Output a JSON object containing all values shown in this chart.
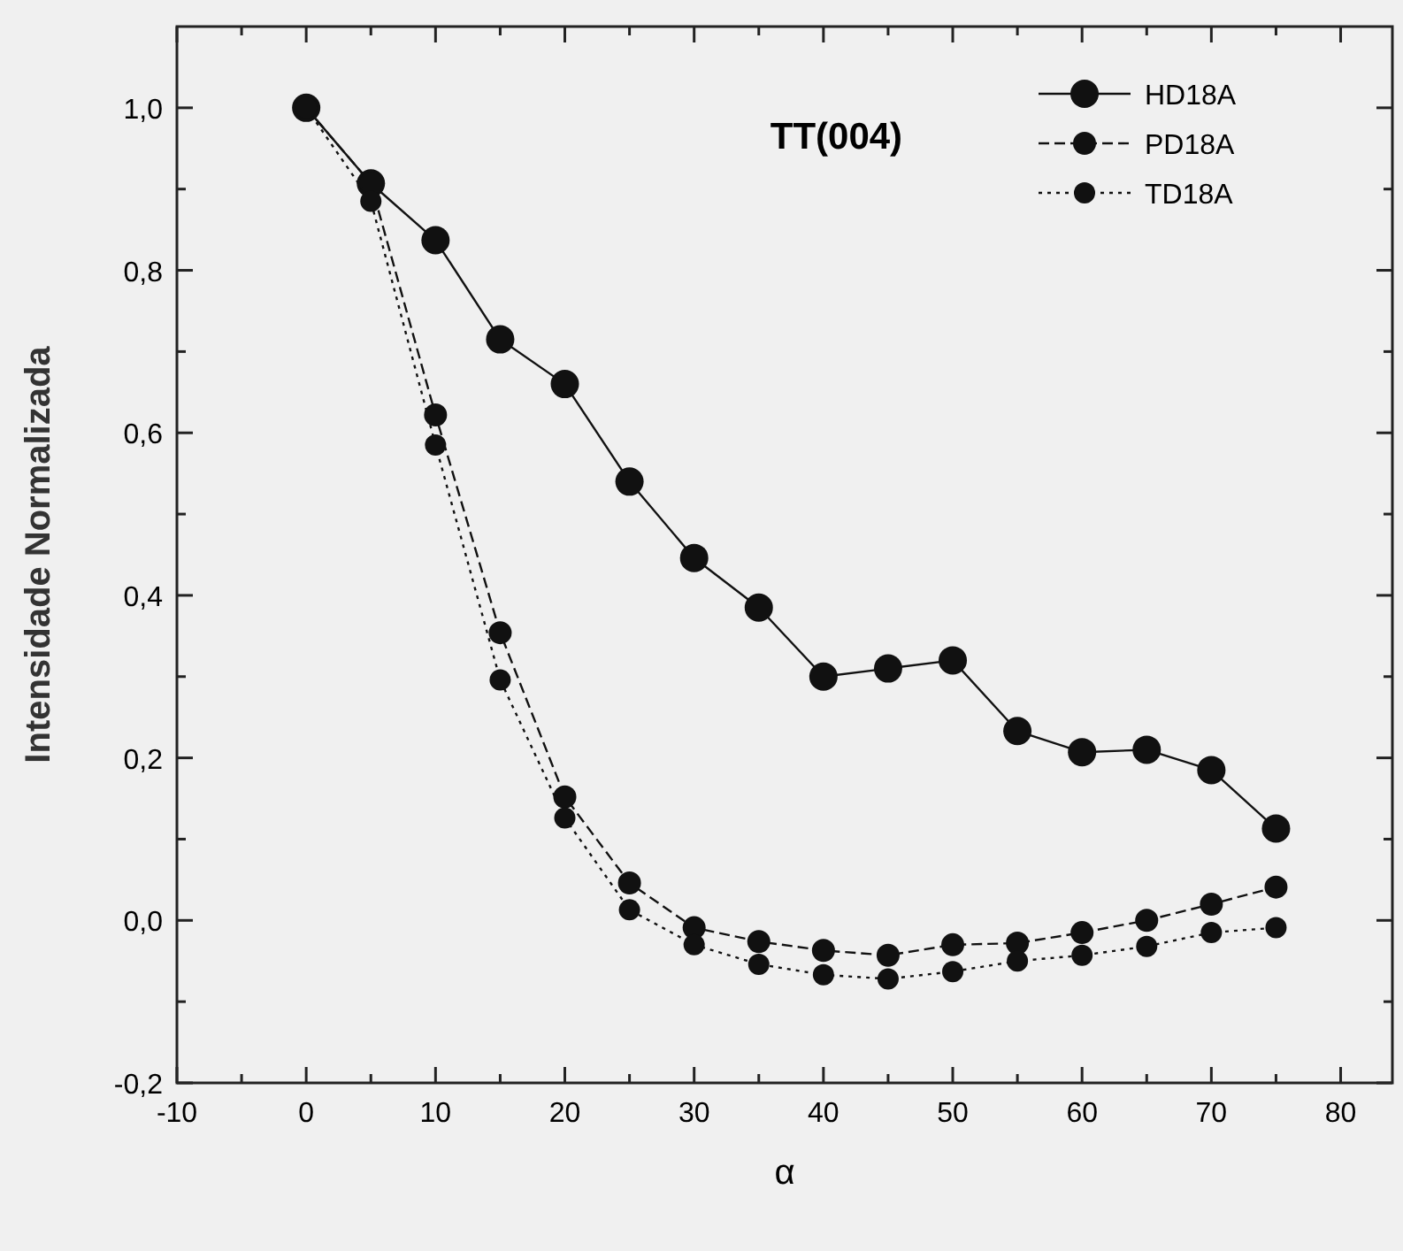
{
  "chart_data": {
    "type": "line",
    "title": "TT(004)",
    "xlabel": "α",
    "ylabel": "Intensidade Normalizada",
    "x": [
      0,
      5,
      10,
      15,
      20,
      25,
      30,
      35,
      40,
      45,
      50,
      55,
      60,
      65,
      70,
      75
    ],
    "series": [
      {
        "name": "HD18A",
        "color": "#111111",
        "line_style": "solid",
        "values": [
          1.0,
          0.907,
          0.837,
          0.715,
          0.66,
          0.54,
          0.446,
          0.385,
          0.3,
          0.31,
          0.32,
          0.233,
          0.207,
          0.21,
          0.185,
          0.113
        ]
      },
      {
        "name": "PD18A",
        "color": "#111111",
        "line_style": "dashed",
        "values": [
          1.0,
          0.907,
          0.622,
          0.354,
          0.152,
          0.046,
          -0.009,
          -0.026,
          -0.037,
          -0.043,
          -0.03,
          -0.028,
          -0.015,
          0.0,
          0.02,
          0.041
        ]
      },
      {
        "name": "TD18A",
        "color": "#111111",
        "line_style": "dotted",
        "values": [
          1.0,
          0.885,
          0.585,
          0.296,
          0.126,
          0.013,
          -0.03,
          -0.054,
          -0.067,
          -0.072,
          -0.063,
          -0.05,
          -0.043,
          -0.032,
          -0.015,
          -0.009
        ]
      }
    ],
    "xlim": [
      -10,
      84
    ],
    "ylim": [
      -0.2,
      1.1
    ],
    "xticks": [
      -10,
      {
        "value": -5,
        "label": null
      },
      0,
      {
        "value": 5,
        "label": null
      },
      10,
      {
        "value": 15,
        "label": null
      },
      20,
      {
        "value": 25,
        "label": null
      },
      30,
      {
        "value": 35,
        "label": null
      },
      40,
      {
        "value": 45,
        "label": null
      },
      50,
      {
        "value": 55,
        "label": null
      },
      60,
      {
        "value": 65,
        "label": null
      },
      70,
      {
        "value": 75,
        "label": null
      },
      80
    ],
    "yticks": [
      {
        "value": -0.2,
        "label": "-0,2"
      },
      {
        "value": -0.1,
        "label": null
      },
      {
        "value": 0,
        "label": "0,0"
      },
      {
        "value": 0.1,
        "label": null
      },
      {
        "value": 0.2,
        "label": "0,2"
      },
      {
        "value": 0.3,
        "label": null
      },
      {
        "value": 0.4,
        "label": "0,4"
      },
      {
        "value": 0.5,
        "label": null
      },
      {
        "value": 0.6,
        "label": "0,6"
      },
      {
        "value": 0.7,
        "label": null
      },
      {
        "value": 0.8,
        "label": "0,8"
      },
      {
        "value": 0.9,
        "label": null
      },
      {
        "value": 1.0,
        "label": "1,0"
      }
    ],
    "marker": "circle",
    "legend": "top right",
    "grid": false
  }
}
